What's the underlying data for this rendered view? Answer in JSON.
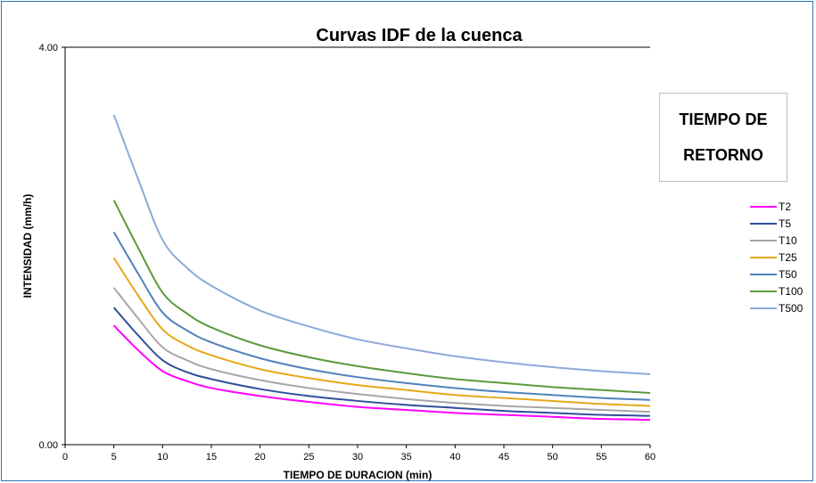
{
  "chart_data": {
    "type": "line",
    "title": "Curvas IDF de la cuenca",
    "xlabel": "TIEMPO DE DURACION (min)",
    "ylabel": "INTENSIDAD (mm/h)",
    "xlim": [
      0,
      60
    ],
    "ylim": [
      0,
      4
    ],
    "xticks": [
      0,
      5,
      10,
      15,
      20,
      25,
      30,
      35,
      40,
      45,
      50,
      55,
      60
    ],
    "yticks": [
      {
        "value": 0,
        "label": "0.00"
      },
      {
        "value": 4,
        "label": "4.00"
      }
    ],
    "grid": false,
    "legend_placement": "right",
    "legend_title_lines": [
      "TIEMPO DE",
      "RETORNO"
    ],
    "x": [
      5,
      7.5,
      10,
      12.5,
      15,
      20,
      25,
      30,
      35,
      40,
      45,
      50,
      55,
      60
    ],
    "series": [
      {
        "name": "T2",
        "color": "#ff00ff",
        "values": [
          1.2,
          0.95,
          0.74,
          0.64,
          0.57,
          0.49,
          0.43,
          0.38,
          0.35,
          0.32,
          0.3,
          0.28,
          0.26,
          0.25
        ]
      },
      {
        "name": "T5",
        "color": "#2f4f99",
        "values": [
          1.38,
          1.1,
          0.85,
          0.73,
          0.66,
          0.56,
          0.49,
          0.44,
          0.4,
          0.37,
          0.34,
          0.32,
          0.3,
          0.29
        ]
      },
      {
        "name": "T10",
        "color": "#a6a6a6",
        "values": [
          1.58,
          1.27,
          0.98,
          0.85,
          0.76,
          0.65,
          0.57,
          0.51,
          0.46,
          0.42,
          0.39,
          0.37,
          0.35,
          0.33
        ]
      },
      {
        "name": "T25",
        "color": "#e6a817",
        "values": [
          1.88,
          1.5,
          1.16,
          1.0,
          0.9,
          0.76,
          0.67,
          0.6,
          0.55,
          0.5,
          0.47,
          0.44,
          0.41,
          0.39
        ]
      },
      {
        "name": "T50",
        "color": "#4f81bd",
        "values": [
          2.14,
          1.72,
          1.33,
          1.15,
          1.03,
          0.87,
          0.76,
          0.68,
          0.62,
          0.57,
          0.53,
          0.5,
          0.47,
          0.45
        ]
      },
      {
        "name": "T100",
        "color": "#5b9a3b",
        "values": [
          2.46,
          1.98,
          1.53,
          1.32,
          1.18,
          1.0,
          0.88,
          0.79,
          0.72,
          0.66,
          0.62,
          0.58,
          0.55,
          0.52
        ]
      },
      {
        "name": "T500",
        "color": "#8ea9db",
        "values": [
          3.32,
          2.67,
          2.06,
          1.78,
          1.6,
          1.35,
          1.19,
          1.06,
          0.97,
          0.89,
          0.83,
          0.78,
          0.74,
          0.71
        ]
      }
    ]
  }
}
